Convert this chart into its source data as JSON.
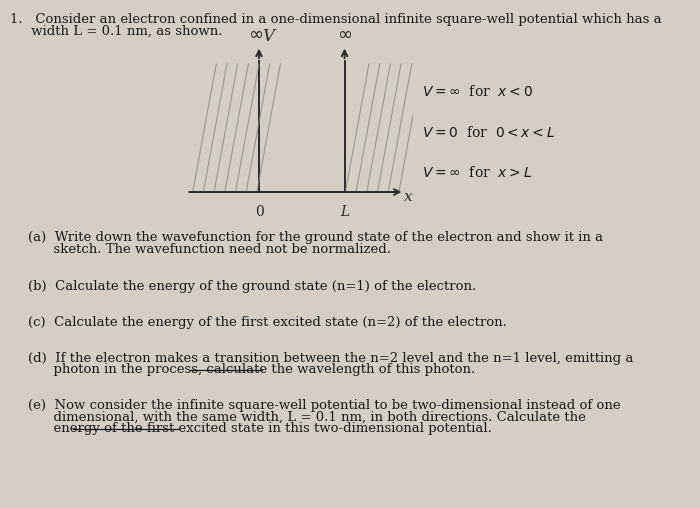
{
  "background_color": "#d4cec6",
  "fig_width": 7.0,
  "fig_height": 5.08,
  "title_line1": "1.   Consider an electron confined in a one-dimensional infinite square-well potential which has a",
  "title_line2": "     width L = 0.1 nm, as shown.",
  "question_a_line1": "(a)  Write down the wavefunction for the ground state of the electron and show it in a",
  "question_a_line2": "      sketch. The wavefunction need not be normalized.",
  "question_b": "(b)  Calculate the energy of the ground state (n=1) of the electron.",
  "question_c": "(c)  Calculate the energy of the first excited state (n=2) of the electron.",
  "question_d_line1": "(d)  If the electron makes a transition between the n=2 level and the n=1 level, emitting a",
  "question_d_line2": "      photon in the process, calculate the wavelength of this photon.",
  "question_e_line1": "(e)  Now consider the infinite square-well potential to be two-dimensional instead of one",
  "question_e_line2": "      dimensional, with the same width, L = 0.1 nm, in both directions. Calculate the",
  "question_e_line3": "      energy of the first excited state in this two-dimensional potential.",
  "text_color": "#1a1a1a",
  "diagram": {
    "well_color": "#2a2a2a",
    "hatch_color": "#888888"
  },
  "eq1": "V = ∞  for  x < 0",
  "eq2": "V = 0  for  0 < x < L",
  "eq3": "V = ∞  for  x > L"
}
